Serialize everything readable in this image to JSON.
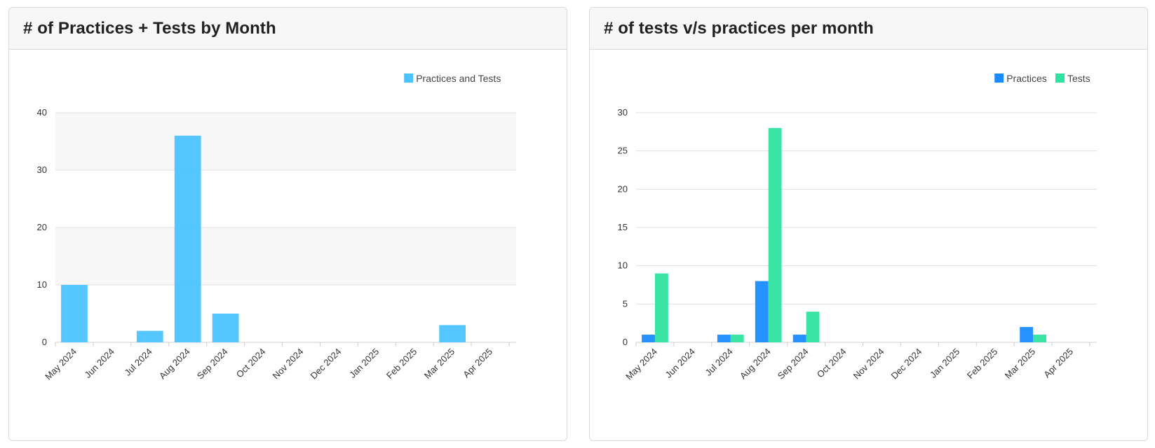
{
  "colors": {
    "practices_and_tests": "#4cc3ff",
    "practices": "#1a8cff",
    "tests": "#2ee3a0",
    "grid": "#e0e0e0",
    "band": "#f7f7f7",
    "axis": "#cfcfcf"
  },
  "left_card": {
    "title": "# of Practices + Tests by Month"
  },
  "right_card": {
    "title": "# of tests v/s practices per month"
  },
  "chart_data": [
    {
      "type": "bar",
      "title": "# of Practices + Tests by Month",
      "categories": [
        "May 2024",
        "Jun 2024",
        "Jul 2024",
        "Aug 2024",
        "Sep 2024",
        "Oct 2024",
        "Nov 2024",
        "Dec 2024",
        "Jan 2025",
        "Feb 2025",
        "Mar 2025",
        "Apr 2025"
      ],
      "series": [
        {
          "name": "Practices and Tests",
          "values": [
            10,
            0,
            2,
            36,
            5,
            0,
            0,
            0,
            0,
            0,
            3,
            0
          ]
        }
      ],
      "ylim": [
        0,
        40
      ],
      "yticks": [
        0,
        10,
        20,
        30,
        40
      ],
      "grid": true,
      "legend": "top-right"
    },
    {
      "type": "bar",
      "title": "# of tests v/s practices per month",
      "categories": [
        "May 2024",
        "Jun 2024",
        "Jul 2024",
        "Aug 2024",
        "Sep 2024",
        "Oct 2024",
        "Nov 2024",
        "Dec 2024",
        "Jan 2025",
        "Feb 2025",
        "Mar 2025",
        "Apr 2025"
      ],
      "series": [
        {
          "name": "Practices",
          "values": [
            1,
            0,
            1,
            8,
            1,
            0,
            0,
            0,
            0,
            0,
            2,
            0
          ]
        },
        {
          "name": "Tests",
          "values": [
            9,
            0,
            1,
            28,
            4,
            0,
            0,
            0,
            0,
            0,
            1,
            0
          ]
        }
      ],
      "ylim": [
        0,
        30
      ],
      "yticks": [
        0,
        5,
        10,
        15,
        20,
        25,
        30
      ],
      "grid": true,
      "legend": "top-right"
    }
  ]
}
